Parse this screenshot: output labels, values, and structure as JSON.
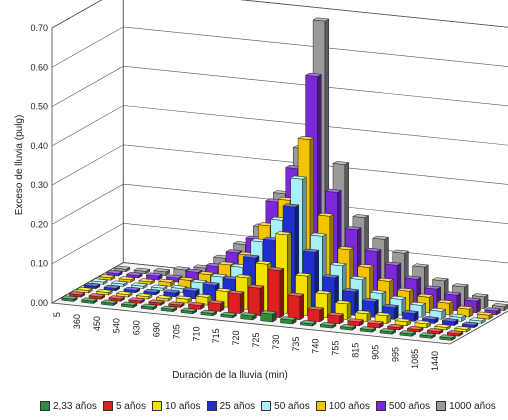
{
  "chart_data": {
    "type": "bar",
    "title": "",
    "ylabel": "Exceso de lluvia (pulg)",
    "xlabel": "Duración de la lluvia (min)",
    "ylim": [
      0,
      0.7
    ],
    "yticks": [
      "0.00",
      "0.10",
      "0.20",
      "0.30",
      "0.40",
      "0.50",
      "0.60",
      "0.70"
    ],
    "grid": true,
    "legend_position": "bottom",
    "categories": [
      "5",
      "360",
      "450",
      "540",
      "630",
      "690",
      "705",
      "710",
      "715",
      "720",
      "725",
      "730",
      "735",
      "740",
      "755",
      "815",
      "905",
      "995",
      "1085",
      "1440"
    ],
    "series": [
      {
        "name": "2,33 años",
        "color": "#2e8b3a",
        "values": [
          0,
          0,
          0,
          0,
          0,
          0,
          0,
          0,
          0,
          0.01,
          0.02,
          0.01,
          0,
          0,
          0,
          0,
          0,
          0,
          0,
          0
        ]
      },
      {
        "name": "5 años",
        "color": "#e02020",
        "values": [
          0,
          0,
          0,
          0,
          0,
          0,
          0.01,
          0.02,
          0.05,
          0.07,
          0.12,
          0.06,
          0.03,
          0.02,
          0.01,
          0.01,
          0,
          0,
          0,
          0
        ]
      },
      {
        "name": "10 años",
        "color": "#f2e200",
        "values": [
          0,
          0,
          0,
          0,
          0,
          0.01,
          0.02,
          0.04,
          0.08,
          0.12,
          0.2,
          0.1,
          0.06,
          0.04,
          0.02,
          0.02,
          0.01,
          0.01,
          0,
          0
        ]
      },
      {
        "name": "25 años",
        "color": "#1f2fd0",
        "values": [
          0,
          0,
          0,
          0,
          0.01,
          0.02,
          0.04,
          0.06,
          0.12,
          0.17,
          0.26,
          0.15,
          0.09,
          0.06,
          0.04,
          0.03,
          0.02,
          0.01,
          0.01,
          0
        ]
      },
      {
        "name": "50 años",
        "color": "#a8f0f8",
        "values": [
          0,
          0,
          0,
          0,
          0.01,
          0.03,
          0.05,
          0.08,
          0.15,
          0.21,
          0.32,
          0.18,
          0.11,
          0.08,
          0.05,
          0.04,
          0.03,
          0.02,
          0.01,
          0
        ]
      },
      {
        "name": "100 años",
        "color": "#f5c400",
        "values": [
          0,
          0,
          0,
          0.01,
          0.02,
          0.04,
          0.07,
          0.1,
          0.18,
          0.25,
          0.41,
          0.22,
          0.14,
          0.1,
          0.07,
          0.05,
          0.04,
          0.03,
          0.02,
          0.01
        ]
      },
      {
        "name": "500 años",
        "color": "#7a28d8",
        "values": [
          0,
          0,
          0.01,
          0.01,
          0.03,
          0.05,
          0.09,
          0.13,
          0.23,
          0.32,
          0.56,
          0.27,
          0.18,
          0.13,
          0.1,
          0.07,
          0.05,
          0.04,
          0.03,
          0.01
        ]
      },
      {
        "name": "1000 años",
        "color": "#9a9a9a",
        "values": [
          0,
          0,
          0.01,
          0.02,
          0.03,
          0.06,
          0.1,
          0.15,
          0.24,
          0.36,
          0.69,
          0.33,
          0.2,
          0.15,
          0.12,
          0.09,
          0.06,
          0.05,
          0.03,
          0.01
        ]
      }
    ]
  }
}
